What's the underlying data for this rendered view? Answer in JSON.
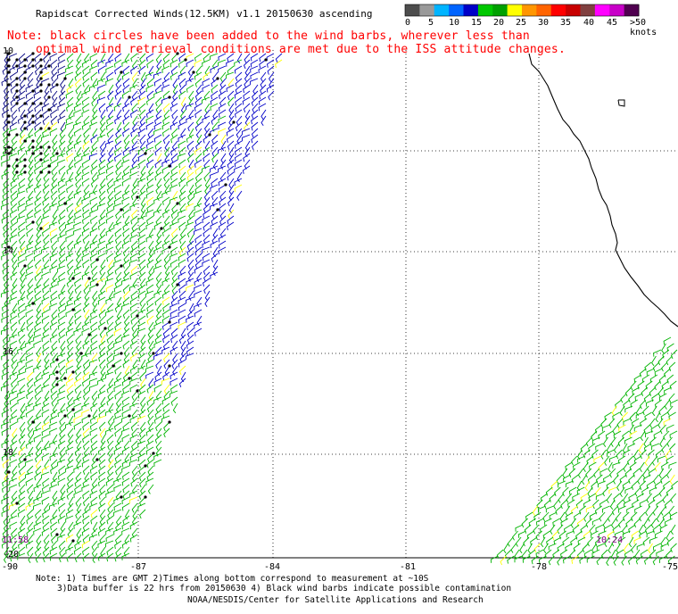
{
  "title": "Rapidscat Corrected Winds(12.5KM) v1.1 20150630 ascending",
  "note_lines": [
    "Note: black circles have been added to the wind barbs, wherever less than",
    "optimal wind retrieval conditions are met due to the ISS attitude changes."
  ],
  "colorbar": {
    "colors": [
      "#4d4d4d",
      "#9a9a9a",
      "#00b4ff",
      "#0064ff",
      "#0000c8",
      "#00c800",
      "#00a000",
      "#ffff00",
      "#ff9600",
      "#ff6400",
      "#ff0000",
      "#c80000",
      "#804040",
      "#ff00ff",
      "#c800c8",
      "#500050"
    ],
    "labels": [
      "0",
      "5",
      "10",
      "15",
      "20",
      "25",
      "30",
      "35",
      "40",
      "45",
      ">50 knots"
    ]
  },
  "lat_labels": [
    "10",
    "12",
    "14",
    "16",
    "18",
    "-20"
  ],
  "lon_labels": [
    "-90",
    "-87",
    "-84",
    "-81",
    "-78",
    "-75"
  ],
  "time_labels": {
    "left": "11:58",
    "right": "10:24"
  },
  "footer": {
    "line1": "Note: 1) Times are GMT 2)Times along bottom correspond to measurement at ~10S",
    "line2": "3)Data buffer is 22 hrs from 20150630 4) Black wind barbs indicate possible contamination",
    "line3": "NOAA/NESDIS/Center for Satellite Applications and Research"
  }
}
